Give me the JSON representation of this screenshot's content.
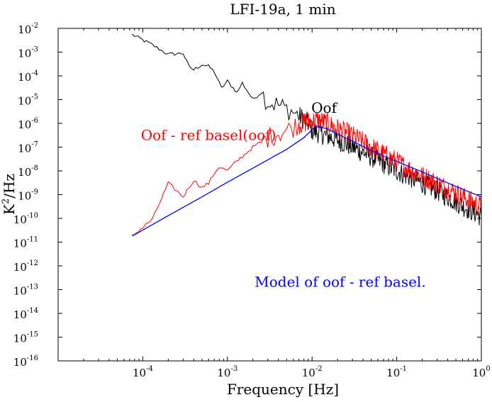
{
  "chart_data": {
    "type": "line",
    "title": "LFI-19a, 1 min",
    "xlabel": "Frequency [Hz]",
    "ylabel_base": "K",
    "ylabel_sup": "2",
    "ylabel_rest": "/Hz",
    "xscale": "log",
    "yscale": "log",
    "xlim": [
      1e-05,
      1
    ],
    "ylim": [
      1e-16,
      0.01
    ],
    "grid": false,
    "x_ticks": [
      {
        "base": "10",
        "exp": "-4",
        "value": 0.0001
      },
      {
        "base": "10",
        "exp": "-3",
        "value": 0.001
      },
      {
        "base": "10",
        "exp": "-2",
        "value": 0.01
      },
      {
        "base": "10",
        "exp": "-1",
        "value": 0.1
      },
      {
        "base": "10",
        "exp": "0",
        "value": 1
      }
    ],
    "y_ticks": [
      {
        "base": "10",
        "exp": "-2",
        "value": 0.01
      },
      {
        "base": "10",
        "exp": "-3",
        "value": 0.001
      },
      {
        "base": "10",
        "exp": "-4",
        "value": 0.0001
      },
      {
        "base": "10",
        "exp": "-5",
        "value": 1e-05
      },
      {
        "base": "10",
        "exp": "-6",
        "value": 1e-06
      },
      {
        "base": "10",
        "exp": "-7",
        "value": 1e-07
      },
      {
        "base": "10",
        "exp": "-8",
        "value": 1e-08
      },
      {
        "base": "10",
        "exp": "-9",
        "value": 1e-09
      },
      {
        "base": "10",
        "exp": "-10",
        "value": 1e-10
      },
      {
        "base": "10",
        "exp": "-11",
        "value": 1e-11
      },
      {
        "base": "10",
        "exp": "-12",
        "value": 1e-12
      },
      {
        "base": "10",
        "exp": "-13",
        "value": 1e-13
      },
      {
        "base": "10",
        "exp": "-14",
        "value": 1e-14
      },
      {
        "base": "10",
        "exp": "-15",
        "value": 1e-15
      },
      {
        "base": "10",
        "exp": "-16",
        "value": 1e-16
      }
    ],
    "annotations": [
      {
        "text": "Oof",
        "color": "#000000",
        "x": 0.0098,
        "y": 2.8e-06
      },
      {
        "text": "Oof - ref basel(oof)",
        "color": "#ff0000",
        "x": 9.5e-05,
        "y": 2e-07
      },
      {
        "text": "Model of oof - ref basel.",
        "color": "#0000ff",
        "x": 0.0021,
        "y": 1.3e-13
      }
    ],
    "series": [
      {
        "color": "#000000",
        "noise_dex": 0.45,
        "x": [
          7.5e-05,
          0.00013,
          0.0002,
          0.0003,
          0.00035,
          0.0004,
          0.0005,
          0.0006,
          0.0007,
          0.00085,
          0.001,
          0.0013,
          0.0015,
          0.002,
          0.0025,
          0.003,
          0.004,
          0.005,
          0.006,
          0.007,
          0.008,
          0.009,
          0.01,
          0.015,
          0.02,
          0.03,
          0.05,
          0.07,
          0.1,
          0.15,
          0.2,
          0.3,
          0.5,
          0.7,
          1.0
        ],
        "y": [
          0.0055,
          0.002,
          0.0008,
          0.0009,
          0.00025,
          0.00018,
          0.0003,
          0.00025,
          0.00015,
          3e-05,
          6e-05,
          2e-05,
          5e-05,
          1e-05,
          2e-05,
          8e-06,
          6e-06,
          4e-06,
          3e-06,
          2e-06,
          1.5e-06,
          1e-06,
          5e-07,
          3e-07,
          2e-07,
          1e-07,
          4e-08,
          2e-08,
          1e-08,
          5e-09,
          3e-09,
          1.5e-09,
          5e-10,
          2.5e-10,
          1.2e-10
        ]
      },
      {
        "color": "#ff0000",
        "noise_dex": 0.45,
        "x": [
          7.5e-05,
          0.00013,
          0.0002,
          0.0003,
          0.00035,
          0.0004,
          0.0005,
          0.0006,
          0.0007,
          0.0008,
          0.001,
          0.0012,
          0.0015,
          0.002,
          0.003,
          0.004,
          0.005,
          0.006,
          0.007,
          0.008,
          0.01,
          0.012,
          0.015,
          0.02,
          0.03,
          0.05,
          0.07,
          0.1,
          0.15,
          0.2,
          0.3,
          0.5,
          0.7,
          1.0
        ],
        "y": [
          1.8e-11,
          9e-11,
          3e-09,
          8e-10,
          2e-09,
          4e-09,
          2e-09,
          3e-09,
          8e-09,
          1.5e-08,
          1e-08,
          2e-08,
          4e-08,
          1e-07,
          2.5e-07,
          4e-07,
          5e-07,
          7e-07,
          9e-07,
          1.1e-06,
          1.2e-06,
          1.4e-06,
          1e-06,
          6e-07,
          3e-07,
          1e-07,
          5e-08,
          2.5e-08,
          1e-08,
          6e-09,
          3e-09,
          1.2e-09,
          6e-10,
          3e-10
        ]
      },
      {
        "color": "#0000ff",
        "noise_dex": 0,
        "x": [
          7.5e-05,
          0.0001,
          0.0002,
          0.0005,
          0.001,
          0.002,
          0.005,
          0.008,
          0.011,
          0.015,
          0.02,
          0.03,
          0.05,
          0.1,
          0.2,
          0.5,
          1.0
        ],
        "y": [
          1.8e-11,
          3.2e-11,
          1.3e-10,
          8e-10,
          3.3e-09,
          1.3e-08,
          8e-08,
          2.5e-07,
          7.5e-07,
          6e-07,
          3.5e-07,
          1.8e-07,
          7e-08,
          2.5e-08,
          9e-09,
          2.2e-09,
          8e-10
        ]
      }
    ]
  }
}
